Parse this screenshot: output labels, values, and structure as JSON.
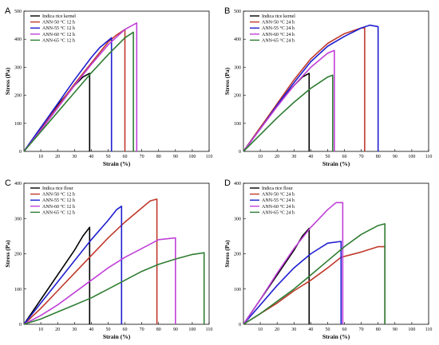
{
  "chart_data": [
    {
      "panel_label": "A",
      "type": "line",
      "xlabel": "Strain (%)",
      "ylabel": "Stress (Pa)",
      "xlim": [
        0,
        110
      ],
      "ylim": [
        0,
        500
      ],
      "xticks": [
        "10",
        "20",
        "30",
        "40",
        "50",
        "60",
        "70",
        "80",
        "90",
        "100",
        "110"
      ],
      "yticks": [
        "0",
        "100",
        "200",
        "300",
        "400",
        "500"
      ],
      "legend_position": "top-left",
      "series": [
        {
          "name": "Indica rice kernel",
          "color": "#000000",
          "x": [
            0,
            10,
            20,
            30,
            35,
            39
          ],
          "y": [
            0,
            85,
            165,
            235,
            265,
            278
          ]
        },
        {
          "name": "ANN-50 °C 12 h",
          "color": "#c0392b",
          "x": [
            0,
            10,
            20,
            30,
            40,
            50,
            55,
            60
          ],
          "y": [
            0,
            80,
            160,
            240,
            315,
            390,
            415,
            435
          ]
        },
        {
          "name": "ANN-55 °C 12 h",
          "color": "#1f1fd0",
          "x": [
            0,
            10,
            20,
            30,
            40,
            45,
            52
          ],
          "y": [
            0,
            85,
            170,
            255,
            335,
            370,
            405
          ]
        },
        {
          "name": "ANN-60 °C 12 h",
          "color": "#c040d8",
          "x": [
            0,
            10,
            20,
            30,
            40,
            50,
            60,
            67
          ],
          "y": [
            0,
            75,
            155,
            235,
            310,
            380,
            435,
            458
          ]
        },
        {
          "name": "ANN-65 °C 12 h",
          "color": "#2e7d32",
          "x": [
            0,
            10,
            20,
            30,
            40,
            50,
            60,
            65
          ],
          "y": [
            0,
            70,
            140,
            210,
            280,
            345,
            405,
            425
          ]
        }
      ]
    },
    {
      "panel_label": "B",
      "type": "line",
      "xlabel": "Strain (%)",
      "ylabel": "Stress (Pa)",
      "xlim": [
        0,
        110
      ],
      "ylim": [
        0,
        500
      ],
      "xticks": [
        "10",
        "20",
        "30",
        "40",
        "50",
        "60",
        "70",
        "80",
        "90",
        "100",
        "110"
      ],
      "yticks": [
        "0",
        "100",
        "200",
        "300",
        "400",
        "500"
      ],
      "legend_position": "top-left",
      "series": [
        {
          "name": "Indica rice kernel",
          "color": "#000000",
          "x": [
            0,
            10,
            20,
            30,
            35,
            39
          ],
          "y": [
            0,
            85,
            165,
            235,
            265,
            278
          ]
        },
        {
          "name": "ANN-50 °C 24 h",
          "color": "#c0392b",
          "x": [
            0,
            10,
            20,
            30,
            40,
            50,
            60,
            70,
            72
          ],
          "y": [
            0,
            85,
            170,
            255,
            330,
            385,
            420,
            440,
            440
          ]
        },
        {
          "name": "ANN-55 °C 24 h",
          "color": "#1f1fd0",
          "x": [
            0,
            10,
            20,
            30,
            40,
            50,
            60,
            70,
            75,
            80
          ],
          "y": [
            0,
            80,
            165,
            245,
            320,
            375,
            410,
            440,
            450,
            445
          ]
        },
        {
          "name": "ANN-60 °C 24 h",
          "color": "#c040d8",
          "x": [
            0,
            10,
            20,
            30,
            40,
            50,
            54
          ],
          "y": [
            0,
            80,
            160,
            235,
            300,
            350,
            360
          ]
        },
        {
          "name": "ANN-65 °C 24 h",
          "color": "#2e7d32",
          "x": [
            0,
            10,
            20,
            30,
            40,
            50,
            53
          ],
          "y": [
            0,
            60,
            120,
            175,
            225,
            265,
            272
          ]
        }
      ]
    },
    {
      "panel_label": "C",
      "type": "line",
      "xlabel": "Strain (%)",
      "ylabel": "Stress (Pa)",
      "xlim": [
        0,
        110
      ],
      "ylim": [
        0,
        400
      ],
      "xticks": [
        "10",
        "20",
        "30",
        "40",
        "50",
        "60",
        "70",
        "80",
        "90",
        "100",
        "110"
      ],
      "yticks": [
        "0",
        "100",
        "200",
        "300",
        "400"
      ],
      "legend_position": "top-left",
      "series": [
        {
          "name": "Indica rice flour",
          "color": "#000000",
          "x": [
            0,
            10,
            20,
            30,
            35,
            39
          ],
          "y": [
            0,
            70,
            140,
            210,
            250,
            275
          ]
        },
        {
          "name": "ANN-50 °C 12 h",
          "color": "#c0392b",
          "x": [
            0,
            10,
            20,
            30,
            40,
            50,
            60,
            70,
            75,
            79
          ],
          "y": [
            0,
            45,
            95,
            145,
            195,
            245,
            290,
            330,
            350,
            355
          ]
        },
        {
          "name": "ANN-55 °C 12 h",
          "color": "#1f1fd0",
          "x": [
            0,
            10,
            20,
            30,
            40,
            50,
            55,
            58
          ],
          "y": [
            0,
            60,
            120,
            180,
            240,
            295,
            325,
            335
          ]
        },
        {
          "name": "ANN-60 °C 12 h",
          "color": "#c040d8",
          "x": [
            0,
            10,
            20,
            30,
            40,
            50,
            60,
            70,
            80,
            90
          ],
          "y": [
            0,
            25,
            55,
            90,
            125,
            160,
            190,
            215,
            240,
            245
          ]
        },
        {
          "name": "ANN-65 °C 12 h",
          "color": "#2e7d32",
          "x": [
            0,
            10,
            20,
            30,
            40,
            50,
            60,
            70,
            80,
            90,
            100,
            107
          ],
          "y": [
            0,
            15,
            35,
            55,
            75,
            100,
            125,
            150,
            170,
            185,
            198,
            203
          ]
        }
      ]
    },
    {
      "panel_label": "D",
      "type": "line",
      "xlabel": "Strain (%)",
      "ylabel": "Stress (Pa)",
      "xlim": [
        0,
        110
      ],
      "ylim": [
        0,
        400
      ],
      "xticks": [
        "10",
        "20",
        "30",
        "40",
        "50",
        "60",
        "70",
        "80",
        "90",
        "100",
        "110"
      ],
      "yticks": [
        "0",
        "100",
        "200",
        "300",
        "400"
      ],
      "legend_position": "top-left",
      "series": [
        {
          "name": "Indica rice flour",
          "color": "#000000",
          "x": [
            0,
            10,
            20,
            30,
            35,
            39
          ],
          "y": [
            0,
            70,
            140,
            210,
            250,
            272
          ]
        },
        {
          "name": "ANN-50 °C 24 h",
          "color": "#c0392b",
          "x": [
            0,
            10,
            20,
            30,
            40,
            50,
            58,
            62,
            70,
            80,
            84
          ],
          "y": [
            0,
            30,
            60,
            95,
            125,
            160,
            190,
            195,
            205,
            220,
            220
          ]
        },
        {
          "name": "ANN-55 °C 24 h",
          "color": "#1f1fd0",
          "x": [
            0,
            10,
            20,
            30,
            40,
            50,
            58
          ],
          "y": [
            0,
            55,
            110,
            160,
            200,
            230,
            235
          ]
        },
        {
          "name": "ANN-60 °C 24 h",
          "color": "#c040d8",
          "x": [
            0,
            10,
            20,
            30,
            40,
            50,
            55,
            59
          ],
          "y": [
            0,
            70,
            145,
            215,
            275,
            325,
            345,
            345
          ]
        },
        {
          "name": "ANN-65 °C 24 h",
          "color": "#2e7d32",
          "x": [
            0,
            10,
            20,
            30,
            40,
            50,
            60,
            70,
            80,
            84
          ],
          "y": [
            0,
            30,
            65,
            100,
            140,
            180,
            220,
            255,
            280,
            285
          ]
        }
      ]
    }
  ]
}
